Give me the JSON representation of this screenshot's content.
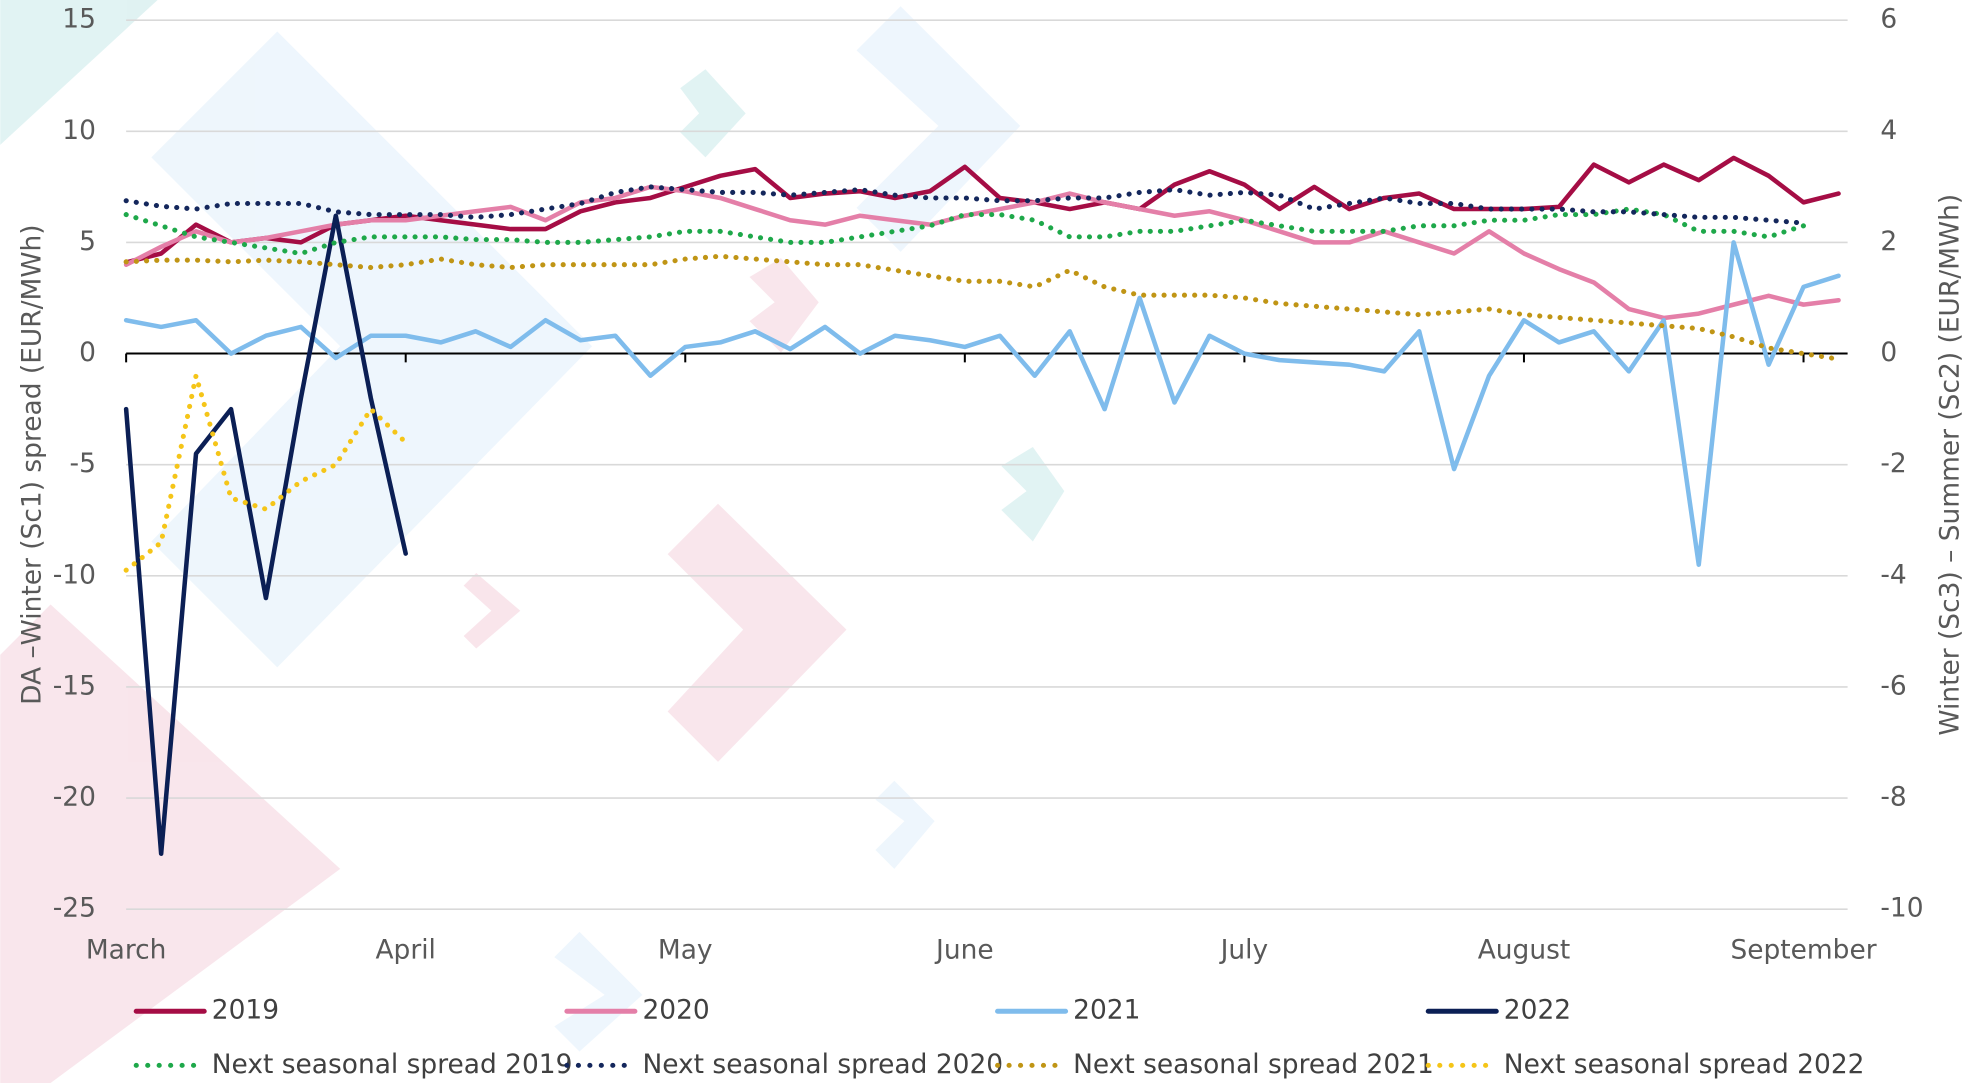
{
  "chart_data": {
    "type": "line",
    "y_label": "DA –Winter (Sc1) spread (EUR/MWh)",
    "y2_label": "Winter (Sc3) – Summer (Sc2) (EUR/MWh)",
    "month_labels": [
      "March",
      "April",
      "May",
      "June",
      "July",
      "August",
      "September"
    ],
    "ylim": [
      -25,
      15
    ],
    "yticks": [
      -25,
      -20,
      -15,
      -10,
      -5,
      0,
      5,
      10,
      15
    ],
    "y2lim": [
      -10,
      6
    ],
    "y2ticks": [
      -10,
      -8,
      -6,
      -4,
      -2,
      0,
      2,
      4,
      6
    ],
    "grid": true,
    "legend": "bottom",
    "series": [
      {
        "name": "2019",
        "color": "#a50d45",
        "style": "solid",
        "values": [
          4.1,
          4.5,
          5.8,
          5.0,
          5.2,
          5.0,
          5.8,
          6.0,
          6.2,
          6.0,
          5.8,
          5.6,
          5.6,
          6.4,
          6.8,
          7.0,
          7.5,
          8.0,
          8.3,
          7.0,
          7.2,
          7.3,
          7.0,
          7.3,
          8.4,
          7.0,
          6.8,
          6.5,
          6.8,
          6.5,
          7.6,
          8.2,
          7.6,
          6.5,
          7.5,
          6.5,
          7.0,
          7.2,
          6.5,
          6.5,
          6.5,
          6.6,
          8.5,
          7.7,
          8.5,
          7.8,
          8.8,
          8.0,
          6.8,
          7.2
        ]
      },
      {
        "name": "2020",
        "color": "#e47fa8",
        "style": "solid",
        "values": [
          4.0,
          4.8,
          5.5,
          5.0,
          5.2,
          5.5,
          5.8,
          6.0,
          6.0,
          6.2,
          6.4,
          6.6,
          6.0,
          6.8,
          7.0,
          7.5,
          7.3,
          7.0,
          6.5,
          6.0,
          5.8,
          6.2,
          6.0,
          5.8,
          6.2,
          6.5,
          6.8,
          7.2,
          6.8,
          6.5,
          6.2,
          6.4,
          6.0,
          5.5,
          5.0,
          5.0,
          5.5,
          5.0,
          4.5,
          5.5,
          4.5,
          3.8,
          3.2,
          2.0,
          1.6,
          1.8,
          2.2,
          2.6,
          2.2,
          2.4
        ]
      },
      {
        "name": "2021",
        "color": "#7fbcec",
        "style": "solid",
        "values": [
          1.5,
          1.2,
          1.5,
          0.0,
          0.8,
          1.2,
          -0.2,
          0.8,
          0.8,
          0.5,
          1.0,
          0.3,
          1.5,
          0.6,
          0.8,
          -1.0,
          0.3,
          0.5,
          1.0,
          0.2,
          1.2,
          0.0,
          0.8,
          0.6,
          0.3,
          0.8,
          -1.0,
          1.0,
          -2.5,
          2.5,
          -2.2,
          0.8,
          0.0,
          -0.3,
          -0.4,
          -0.5,
          -0.8,
          1.0,
          -5.2,
          -1.0,
          1.5,
          0.5,
          1.0,
          -0.8,
          1.5,
          -9.5,
          5.0,
          -0.5,
          3.0,
          3.5
        ]
      },
      {
        "name": "2022",
        "color": "#0b1f55",
        "style": "solid",
        "values": [
          -2.5,
          -22.5,
          -4.5,
          -2.5,
          -11,
          -2,
          6.2,
          -2.0,
          -9,
          null,
          null,
          null,
          null,
          null,
          null,
          null,
          null,
          null,
          null,
          null,
          null,
          null,
          null,
          null,
          null,
          null,
          null,
          null,
          null,
          null,
          null,
          null,
          null,
          null,
          null,
          null,
          null,
          null,
          null,
          null,
          null,
          null,
          null,
          null,
          null,
          null,
          null,
          null,
          null,
          null
        ]
      },
      {
        "name": "Next seasonal spread 2019",
        "color": "#1ea84a",
        "style": "dotted",
        "axis": "y2",
        "values": [
          2.5,
          2.3,
          2.1,
          2.0,
          1.9,
          1.8,
          2.0,
          2.1,
          2.1,
          2.1,
          2.05,
          2.05,
          2.0,
          2.0,
          2.05,
          2.1,
          2.2,
          2.2,
          2.1,
          2.0,
          2.0,
          2.1,
          2.2,
          2.3,
          2.5,
          2.5,
          2.4,
          2.1,
          2.1,
          2.2,
          2.2,
          2.3,
          2.4,
          2.3,
          2.2,
          2.2,
          2.2,
          2.3,
          2.3,
          2.4,
          2.4,
          2.5,
          2.5,
          2.6,
          2.5,
          2.2,
          2.2,
          2.1,
          2.3,
          null
        ]
      },
      {
        "name": "Next seasonal spread 2020",
        "color": "#14275c",
        "style": "dotted",
        "axis": "y2",
        "values": [
          2.75,
          2.65,
          2.6,
          2.7,
          2.7,
          2.7,
          2.55,
          2.5,
          2.5,
          2.5,
          2.45,
          2.5,
          2.6,
          2.7,
          2.9,
          3.0,
          2.95,
          2.9,
          2.9,
          2.85,
          2.9,
          2.95,
          2.85,
          2.8,
          2.8,
          2.75,
          2.75,
          2.8,
          2.8,
          2.9,
          2.95,
          2.85,
          2.9,
          2.85,
          2.6,
          2.7,
          2.8,
          2.7,
          2.7,
          2.6,
          2.6,
          2.6,
          2.55,
          2.55,
          2.5,
          2.45,
          2.45,
          2.4,
          2.35,
          null
        ]
      },
      {
        "name": "Next seasonal spread 2021",
        "color": "#c09515",
        "style": "dotted",
        "axis": "y2",
        "values": [
          1.65,
          1.68,
          1.68,
          1.65,
          1.68,
          1.65,
          1.6,
          1.55,
          1.6,
          1.7,
          1.6,
          1.55,
          1.6,
          1.6,
          1.6,
          1.6,
          1.7,
          1.75,
          1.7,
          1.65,
          1.6,
          1.6,
          1.5,
          1.4,
          1.3,
          1.3,
          1.2,
          1.5,
          1.2,
          1.05,
          1.05,
          1.05,
          1.0,
          0.9,
          0.85,
          0.8,
          0.75,
          0.7,
          0.75,
          0.8,
          0.7,
          0.65,
          0.6,
          0.55,
          0.5,
          0.45,
          0.3,
          0.1,
          0.0,
          -0.1
        ]
      },
      {
        "name": "Next seasonal spread 2022",
        "color": "#f5c518",
        "style": "dotted",
        "axis": "y2",
        "values": [
          -3.9,
          -3.4,
          -0.4,
          -2.6,
          -2.8,
          -2.3,
          -2.0,
          -1.0,
          -1.6,
          null,
          null,
          null,
          null,
          null,
          null,
          null,
          null,
          null,
          null,
          null,
          null,
          null,
          null,
          null,
          null,
          null,
          null,
          null,
          null,
          null,
          null,
          null,
          null,
          null,
          null,
          null,
          null,
          null,
          null,
          null,
          null,
          null,
          null,
          null,
          null,
          null,
          null,
          null,
          null,
          null
        ]
      }
    ]
  }
}
